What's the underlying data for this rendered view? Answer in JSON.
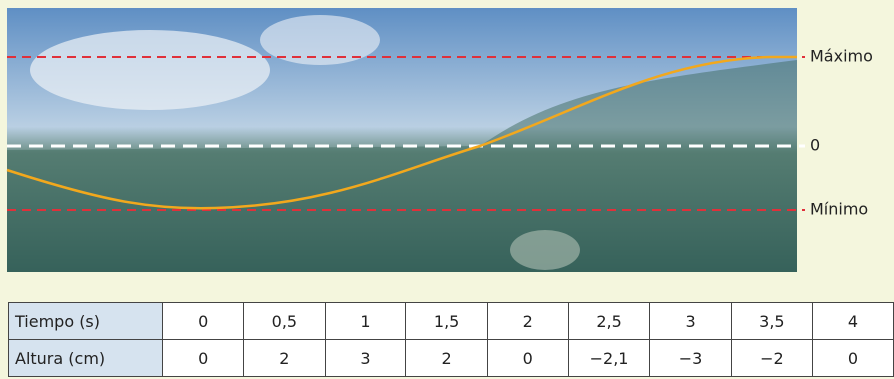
{
  "labels": {
    "max": "Máximo",
    "zero": "0",
    "min": "Mínimo"
  },
  "table": {
    "rows": [
      [
        "Tiempo (s)",
        "0",
        "0,5",
        "1",
        "1,5",
        "2",
        "2,5",
        "3",
        "3,5",
        "4"
      ],
      [
        "Altura (cm)",
        "0",
        "2",
        "3",
        "2",
        "0",
        "−2,1",
        "−3",
        "−2",
        "0"
      ]
    ]
  }
}
